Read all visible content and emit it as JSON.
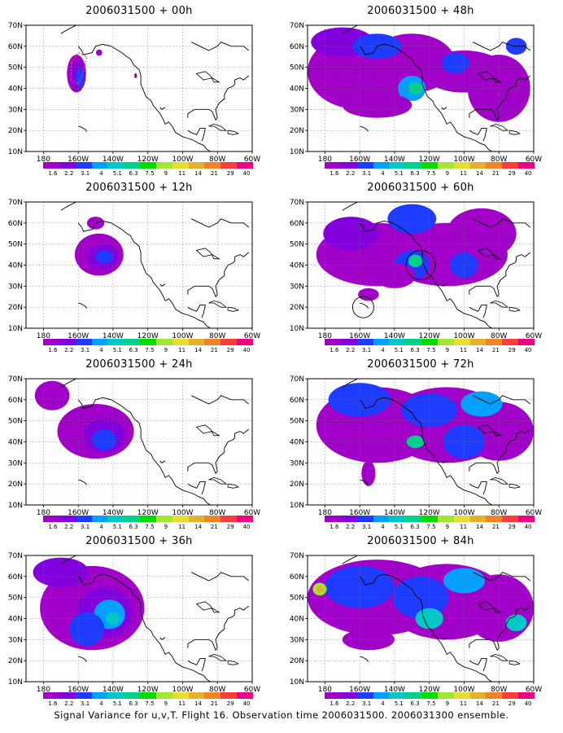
{
  "panels": [
    {
      "id": "p00",
      "title": "2006031500 + 00h"
    },
    {
      "id": "p48",
      "title": "2006031500 + 48h"
    },
    {
      "id": "p12",
      "title": "2006031500 + 12h"
    },
    {
      "id": "p60",
      "title": "2006031500 + 60h"
    },
    {
      "id": "p24",
      "title": "2006031500 + 24h"
    },
    {
      "id": "p72",
      "title": "2006031500 + 72h"
    },
    {
      "id": "p36",
      "title": "2006031500 + 36h"
    },
    {
      "id": "p84",
      "title": "2006031500 + 84h"
    }
  ],
  "lat_labels": [
    "70N",
    "60N",
    "50N",
    "40N",
    "30N",
    "20N",
    "10N"
  ],
  "lon_labels": [
    "180",
    "160W",
    "140W",
    "120W",
    "100W",
    "80W",
    "60W"
  ],
  "colorbar": {
    "labels": [
      "1.6",
      "2.2",
      "3.1",
      "4",
      "5.1",
      "6.3",
      "7.5",
      "9",
      "11",
      "14",
      "21",
      "29",
      "40"
    ],
    "colors": [
      "#a000c8",
      "#8200dc",
      "#1e3cff",
      "#00a0ff",
      "#00c8c8",
      "#00d28c",
      "#00dc00",
      "#a0e632",
      "#e6dc32",
      "#e6af2d",
      "#f08228",
      "#fa3c3c",
      "#f00082"
    ]
  },
  "caption": "Signal Variance for u,v,T. Flight 16. Observation time 2006031500. 2006031300 ensemble."
}
